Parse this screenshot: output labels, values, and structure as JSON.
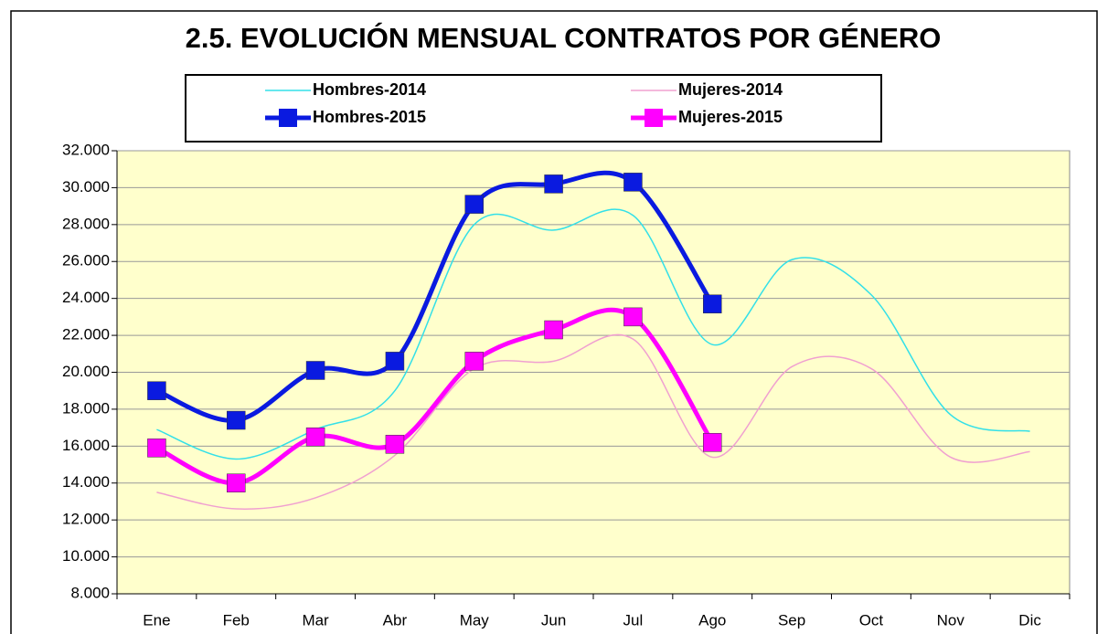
{
  "chart_data": {
    "type": "line",
    "title": "2.5. EVOLUCIÓN MENSUAL CONTRATOS POR GÉNERO",
    "categories": [
      "Ene",
      "Feb",
      "Mar",
      "Abr",
      "May",
      "Jun",
      "Jul",
      "Ago",
      "Sep",
      "Oct",
      "Nov",
      "Dic"
    ],
    "series": [
      {
        "name": "Hombres-2014",
        "color": "#33e0e8",
        "marker": false,
        "width": 1.5,
        "values": [
          16900,
          15300,
          16900,
          19000,
          28000,
          27700,
          28500,
          21500,
          26100,
          24200,
          17700,
          16800
        ]
      },
      {
        "name": "Mujeres-2014",
        "color": "#f0a0d0",
        "marker": false,
        "width": 1.5,
        "values": [
          13500,
          12600,
          13200,
          15500,
          20200,
          20600,
          21800,
          15400,
          20300,
          20200,
          15400,
          15700
        ]
      },
      {
        "name": "Hombres-2015",
        "color": "#0a1ae0",
        "marker": true,
        "width": 5,
        "values": [
          19000,
          17400,
          20100,
          20600,
          29100,
          30200,
          30300,
          23700,
          null,
          null,
          null,
          null
        ]
      },
      {
        "name": "Mujeres-2015",
        "color": "#ff00ff",
        "marker": true,
        "width": 5,
        "values": [
          15900,
          14000,
          16500,
          16100,
          20600,
          22300,
          23000,
          16200,
          null,
          null,
          null,
          null
        ]
      }
    ],
    "ylim": [
      8000,
      32000
    ],
    "yticks": [
      {
        "value": 8000,
        "label": "8.000"
      },
      {
        "value": 10000,
        "label": "10.000"
      },
      {
        "value": 12000,
        "label": "12.000"
      },
      {
        "value": 14000,
        "label": "14.000"
      },
      {
        "value": 16000,
        "label": "16.000"
      },
      {
        "value": 18000,
        "label": "18.000"
      },
      {
        "value": 20000,
        "label": "20.000"
      },
      {
        "value": 22000,
        "label": "22.000"
      },
      {
        "value": 24000,
        "label": "24.000"
      },
      {
        "value": 26000,
        "label": "26.000"
      },
      {
        "value": 28000,
        "label": "28.000"
      },
      {
        "value": 30000,
        "label": "30.000"
      },
      {
        "value": 32000,
        "label": "32.000"
      }
    ],
    "grid": true,
    "plot_background": "#ffffcc"
  }
}
